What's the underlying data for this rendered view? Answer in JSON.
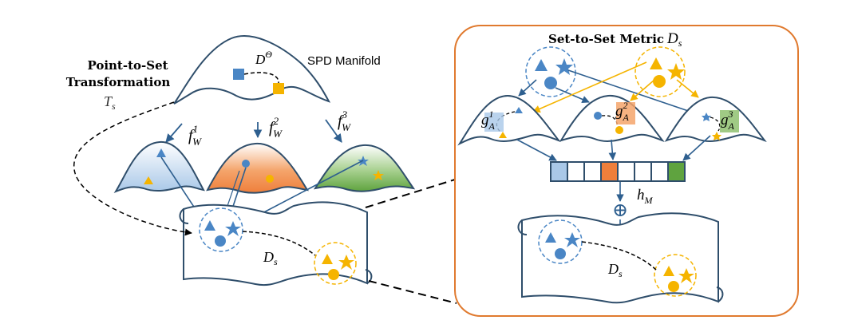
{
  "left_panel": {
    "title_line1": "Point-to-Set",
    "title_line2": "Transformation",
    "transform_symbol": "T",
    "transform_sub": "s",
    "manifold_label": "SPD Manifold",
    "metric_symbol": "D",
    "metric_sup": "Θ",
    "maps": [
      {
        "symbol": "f",
        "sup": "1",
        "sub": "W"
      },
      {
        "symbol": "f",
        "sup": "2",
        "sub": "W"
      },
      {
        "symbol": "f",
        "sup": "3",
        "sub": "W"
      }
    ],
    "set_space_label": "D",
    "set_space_sub": "s"
  },
  "right_panel": {
    "title_text": "Set-to-Set Metric",
    "title_symbol": "D",
    "title_sub": "s",
    "metrics": [
      {
        "symbol": "g",
        "sup": "1",
        "sub": "A"
      },
      {
        "symbol": "g",
        "sup": "2",
        "sub": "A"
      },
      {
        "symbol": "g",
        "sup": "3",
        "sub": "A"
      }
    ],
    "hm_symbol": "h",
    "hm_sub": "M",
    "oplus": "⊕",
    "set_space_label": "D",
    "set_space_sub": "s"
  },
  "colors": {
    "blue": "#4a86c5",
    "blue_dark": "#2e5f8f",
    "orange_fill": "#ef7f3b",
    "orange_panel": "#e07a2f",
    "yellow": "#f5b400",
    "green": "#5fa33f",
    "light_blue": "#a9c8e8",
    "outline": "#2f4e6b"
  }
}
